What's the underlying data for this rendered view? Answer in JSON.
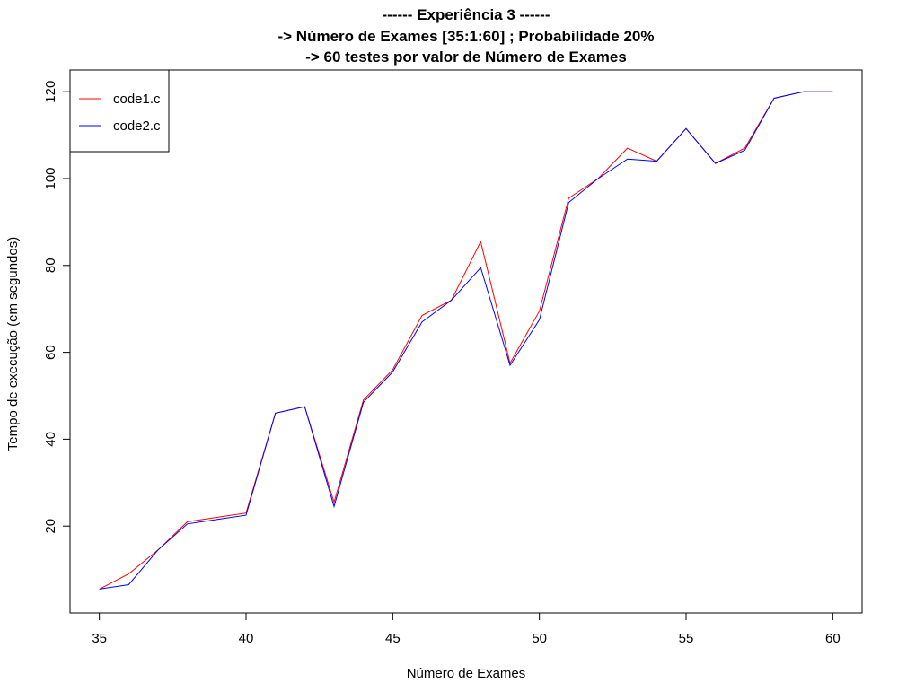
{
  "chart_data": {
    "type": "line",
    "title": [
      "------ Experiência 3 ------",
      "-> Número de Exames [35:1:60] ; Probabilidade 20%",
      "-> 60 testes por valor de Número de Exames"
    ],
    "xlabel": "Número de Exames",
    "ylabel": "Tempo de execução (em segundos)",
    "xlim": [
      34,
      61
    ],
    "ylim": [
      0,
      125
    ],
    "xticks": [
      35,
      40,
      45,
      50,
      55,
      60
    ],
    "yticks": [
      20,
      40,
      60,
      80,
      100,
      120
    ],
    "x": [
      35,
      36,
      37,
      38,
      39,
      40,
      41,
      42,
      43,
      44,
      45,
      46,
      47,
      48,
      49,
      50,
      51,
      52,
      53,
      54,
      55,
      56,
      57,
      58,
      59,
      60
    ],
    "series": [
      {
        "name": "code1.c",
        "color": "#ff0000",
        "values": [
          5.5,
          9,
          14.5,
          21,
          22,
          23,
          46,
          47.5,
          25.5,
          49,
          56,
          68.5,
          72,
          85.5,
          57.5,
          69.5,
          95.5,
          100,
          107,
          104,
          111.5,
          103.5,
          107,
          118.5,
          120,
          120
        ]
      },
      {
        "name": "code2.c",
        "color": "#0000ff",
        "values": [
          5.5,
          6.5,
          14.5,
          20.5,
          21.5,
          22.5,
          46,
          47.5,
          24.5,
          48.5,
          55.5,
          67,
          72,
          79.5,
          57,
          67.5,
          94.5,
          100,
          104.5,
          104,
          111.5,
          103.5,
          106.5,
          118.5,
          120,
          120
        ]
      }
    ],
    "legend": {
      "position": "top-left",
      "entries": [
        "code1.c",
        "code2.c"
      ]
    },
    "grid": false
  }
}
